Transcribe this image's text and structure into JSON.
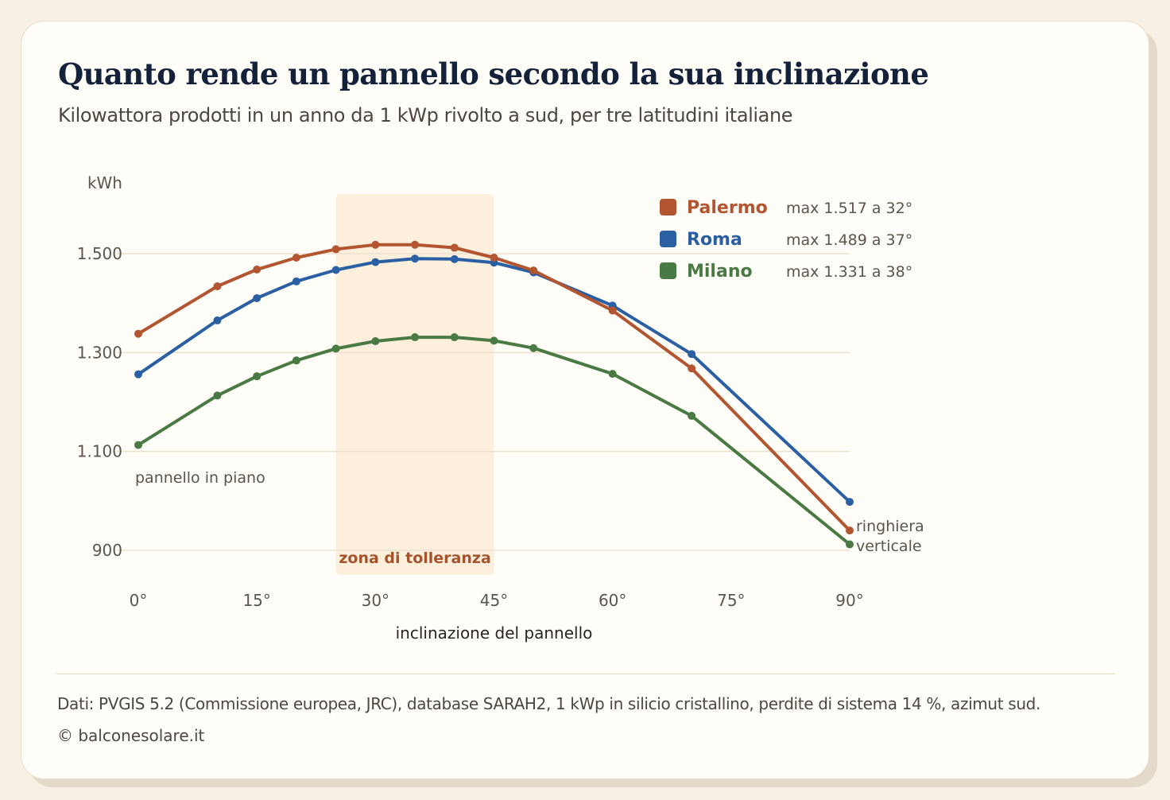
{
  "title": "Quanto rende un pannello secondo la sua inclinazione",
  "subtitle": "Kilowattora prodotti in un anno da 1 kWp rivolto a sud, per tre latitudini italiane",
  "source": "Dati: PVGIS 5.2 (Commissione europea, JRC), database SARAH2, 1 kWp in silicio cristallino, perdite di sistema 14 %, azimut sud.",
  "credit": "© balconesolare.it",
  "chart_data": {
    "type": "line",
    "ylabel": "kWh",
    "xlabel": "inclinazione del pannello",
    "xlim": [
      0,
      90
    ],
    "ylim": [
      900,
      1600
    ],
    "yticks": [
      900,
      1100,
      1300,
      1500
    ],
    "ytick_labels": [
      "900",
      "1.100",
      "1.300",
      "1.500"
    ],
    "xticks": [
      0,
      15,
      30,
      45,
      60,
      75,
      90
    ],
    "xtick_labels": [
      "0°",
      "15°",
      "30°",
      "45°",
      "60°",
      "75°",
      "90°"
    ],
    "grid": "horizontal",
    "legend_position": "top-right",
    "band": {
      "from": 25,
      "to": 45,
      "label": "zona di tolleranza",
      "color": "#fcefdc"
    },
    "annotations": [
      {
        "text": "pannello in piano",
        "x": 0
      },
      {
        "text": "ringhiera",
        "x": 90
      },
      {
        "text": "verticale",
        "x": 90
      }
    ],
    "x": [
      0,
      10,
      15,
      20,
      25,
      30,
      35,
      40,
      45,
      50,
      60,
      70,
      90
    ],
    "series": [
      {
        "name": "Palermo",
        "color": "#b35530",
        "max_label": "max 1.517 a 32°",
        "values": [
          1338,
          1434,
          1468,
          1492,
          1509,
          1518,
          1518,
          1512,
          1492,
          1466,
          1385,
          1268,
          940
        ]
      },
      {
        "name": "Roma",
        "color": "#2b5fa3",
        "max_label": "max 1.489 a 37°",
        "values": [
          1256,
          1365,
          1410,
          1444,
          1467,
          1483,
          1490,
          1489,
          1482,
          1462,
          1395,
          1297,
          998
        ]
      },
      {
        "name": "Milano",
        "color": "#4a7a43",
        "max_label": "max 1.331 a 38°",
        "values": [
          1113,
          1213,
          1252,
          1284,
          1308,
          1323,
          1331,
          1331,
          1324,
          1309,
          1257,
          1172,
          912
        ]
      }
    ]
  }
}
